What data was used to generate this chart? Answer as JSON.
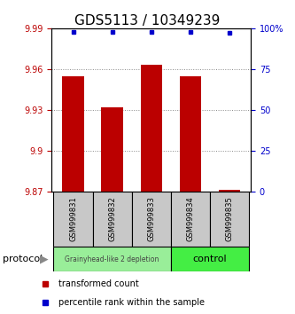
{
  "title": "GDS5113 / 10349239",
  "samples": [
    "GSM999831",
    "GSM999832",
    "GSM999833",
    "GSM999834",
    "GSM999835"
  ],
  "bar_values": [
    9.955,
    9.932,
    9.963,
    9.955,
    9.871
  ],
  "percentile_values": [
    98,
    98,
    98,
    98,
    97
  ],
  "bar_bottom": 9.87,
  "ylim_left": [
    9.87,
    9.99
  ],
  "ylim_right": [
    0,
    100
  ],
  "yticks_left": [
    9.87,
    9.9,
    9.93,
    9.96,
    9.99
  ],
  "ytick_labels_left": [
    "9.87",
    "9.9",
    "9.93",
    "9.96",
    "9.99"
  ],
  "yticks_right": [
    0,
    25,
    50,
    75,
    100
  ],
  "ytick_labels_right": [
    "0",
    "25",
    "50",
    "75",
    "100%"
  ],
  "bar_color": "#bb0000",
  "dot_color": "#0000cc",
  "group1_label": "Grainyhead-like 2 depletion",
  "group2_label": "control",
  "group1_color": "#99ee99",
  "group2_color": "#44ee44",
  "protocol_label": "protocol",
  "legend_bar_label": "transformed count",
  "legend_dot_label": "percentile rank within the sample",
  "title_fontsize": 11,
  "tick_fontsize": 7
}
